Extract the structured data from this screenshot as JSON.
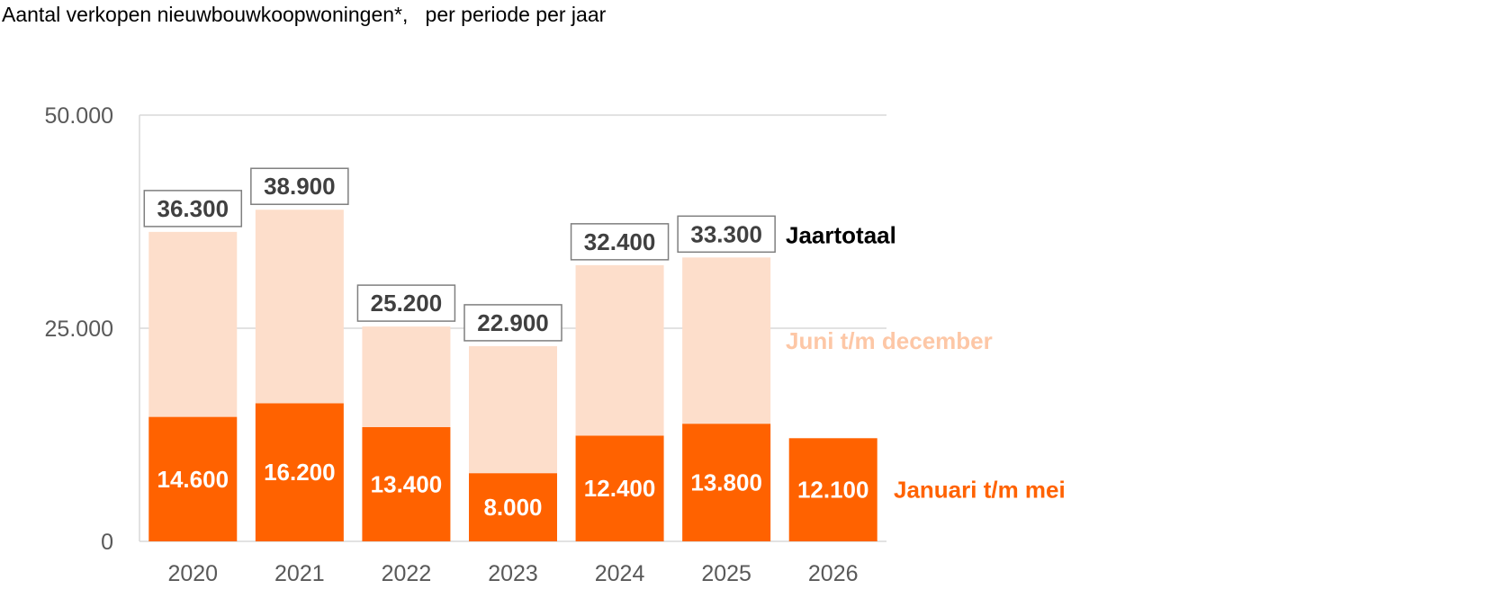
{
  "chart_data": {
    "type": "bar",
    "stacked": true,
    "title": "Aantal verkopen nieuwbouwkoopwoningen*,   per periode per jaar",
    "categories": [
      "2020",
      "2021",
      "2022",
      "2023",
      "2024",
      "2025",
      "2026"
    ],
    "series": [
      {
        "name": "Januari t/m mei",
        "values": [
          14600,
          16200,
          13400,
          8000,
          12400,
          13800,
          12100
        ],
        "labels": [
          "14.600",
          "16.200",
          "13.400",
          "8.000",
          "12.400",
          "13.800",
          "12.100"
        ],
        "color": "#ff6200"
      },
      {
        "name": "Juni t/m december",
        "values": [
          21700,
          22700,
          11800,
          14900,
          20000,
          19500,
          null
        ],
        "color": "#fddecb",
        "label_color": "#fdc7a6"
      }
    ],
    "totals": {
      "name": "Jaartotaal",
      "values": [
        36300,
        38900,
        25200,
        22900,
        32400,
        33300,
        null
      ],
      "labels": [
        "36.300",
        "38.900",
        "25.200",
        "22.900",
        "32.400",
        "33.300",
        null
      ]
    },
    "yticks": [
      "0",
      "25.000",
      "50.000"
    ],
    "ytick_values": [
      0,
      25000,
      50000
    ],
    "ylim": [
      0,
      50000
    ],
    "grid": true,
    "legend_placement": "right, inline at end of bars",
    "colors": {
      "gridline": "#d9d9d9",
      "axis_text": "#595959",
      "total_label": "#404040",
      "total_box": "#7f7f7f",
      "total_legend": "#000000"
    }
  }
}
